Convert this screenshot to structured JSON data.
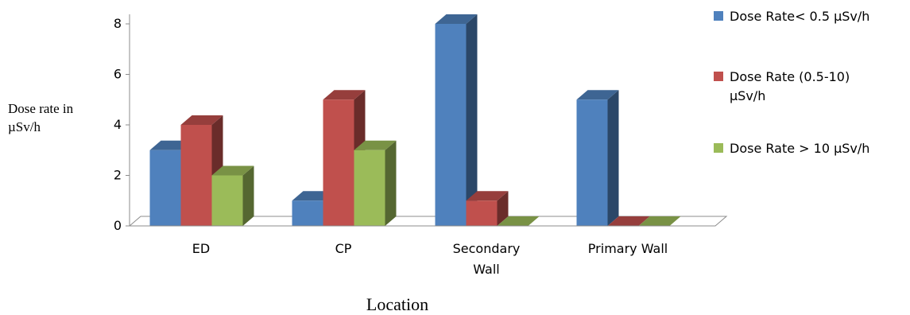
{
  "chart_data": {
    "type": "bar",
    "categories": [
      "ED",
      "CP",
      "Secondary Wall",
      "Primary Wall"
    ],
    "category_label_lines": [
      [
        "ED"
      ],
      [
        "CP"
      ],
      [
        "Secondary",
        "Wall"
      ],
      [
        "Primary Wall"
      ]
    ],
    "series": [
      {
        "name": "Dose Rate< 0.5 µSv/h",
        "values": [
          3,
          1,
          8,
          5
        ],
        "color": "#4f81bd"
      },
      {
        "name": "Dose Rate (0.5-10) µSv/h",
        "name_lines": [
          "Dose Rate (0.5-10)",
          "µSv/h"
        ],
        "values": [
          4,
          5,
          1,
          0
        ],
        "color": "#c0504d"
      },
      {
        "name": "Dose Rate > 10 µSv/h",
        "values": [
          2,
          3,
          0,
          0
        ],
        "color": "#9bbb59"
      }
    ],
    "ylabel": "Dose rate in µSv/h",
    "ylabel_lines": [
      "Dose rate in",
      "µSv/h"
    ],
    "xlabel": "Location",
    "ylim": [
      0,
      8
    ],
    "yticks": [
      0,
      2,
      4,
      6,
      8
    ],
    "grid": false,
    "legend_position": "right",
    "style": "3d-clustered-column"
  }
}
